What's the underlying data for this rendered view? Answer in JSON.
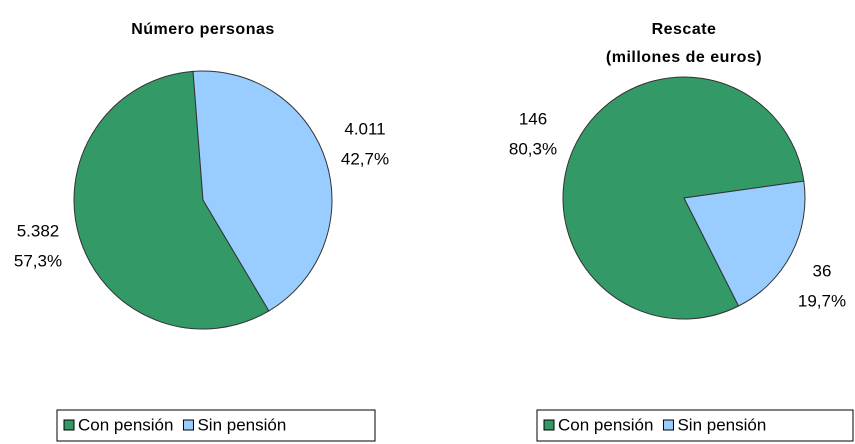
{
  "chart_data": [
    {
      "type": "pie",
      "title": "Número personas",
      "categories": [
        "Con pensión",
        "Sin pensión"
      ],
      "values": [
        5382,
        4011
      ],
      "value_labels": [
        "5.382",
        "4.011"
      ],
      "percent_labels": [
        "57,3%",
        "42,7%"
      ],
      "colors": [
        "#339966",
        "#99ccff"
      ],
      "legend": "bottom"
    },
    {
      "type": "pie",
      "title": "Rescate",
      "subtitle": "(millones de euros)",
      "categories": [
        "Con pensión",
        "Sin pensión"
      ],
      "values": [
        146,
        36
      ],
      "percent_labels": [
        "80,3%",
        "19,7%"
      ],
      "colors": [
        "#339966",
        "#99ccff"
      ],
      "legend": "bottom"
    }
  ]
}
